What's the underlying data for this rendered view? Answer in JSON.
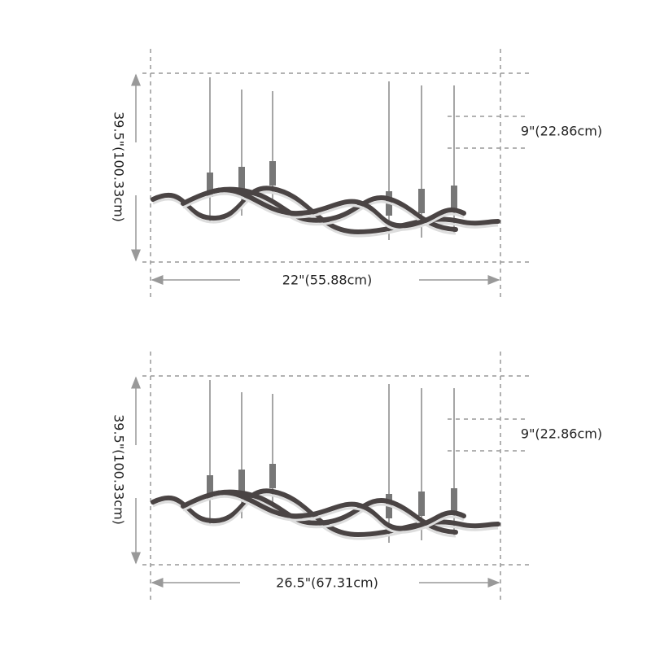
{
  "panels": [
    {
      "height": "39.5\"(100.33cm)",
      "drop": "9\"(22.86cm)",
      "width": "22\"(55.88cm)"
    },
    {
      "height": "39.5\"(100.33cm)",
      "drop": "9\"(22.86cm)",
      "width": "26.5\"(67.31cm)"
    }
  ]
}
